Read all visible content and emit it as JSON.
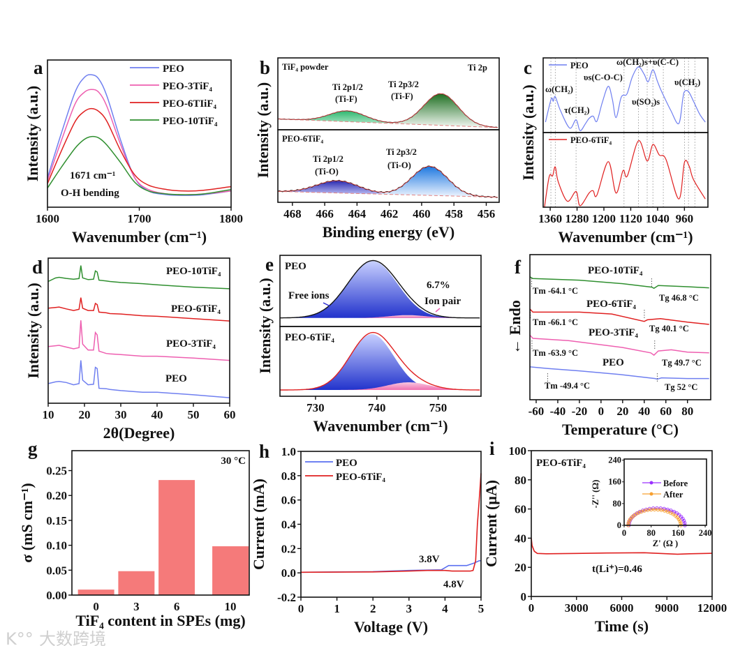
{
  "watermark": "大数跨境",
  "colors": {
    "peo": "#6f7ff0",
    "peo3": "#ee5fb0",
    "peo6": "#e02020",
    "peo10": "#2f8f2f",
    "bar": "#f57a7a",
    "before": "#9b30ff",
    "after": "#f7a030"
  },
  "chart_data": [
    {
      "id": "a",
      "panel_label": "a",
      "type": "line",
      "xlabel": "Wavenumber (cm⁻¹)",
      "ylabel": "Intensity (a.u.)",
      "xlim": [
        1600,
        1800
      ],
      "ylim": [
        0,
        100
      ],
      "xticks": [
        "1600",
        "1700",
        "1800"
      ],
      "x": [
        1600,
        1615,
        1630,
        1640,
        1648,
        1656,
        1665,
        1680,
        1695,
        1710,
        1730,
        1750,
        1770,
        1800
      ],
      "series": [
        {
          "name": "PEO",
          "color": "#6f7ff0",
          "y": [
            20,
            50,
            78,
            88,
            90,
            87,
            75,
            45,
            20,
            11,
            8.5,
            8,
            8.5,
            11
          ]
        },
        {
          "name": "PEO-3TiF₄",
          "color": "#ee5fb0",
          "y": [
            18,
            45,
            70,
            78,
            80,
            78,
            68,
            42,
            20,
            12,
            9,
            8.5,
            9,
            11
          ]
        },
        {
          "name": "PEO-6TIiF₄",
          "color": "#e02020",
          "y": [
            16,
            38,
            58,
            65,
            67,
            65,
            58,
            38,
            22,
            15,
            12,
            11,
            11.5,
            14
          ]
        },
        {
          "name": "PEO-10TiF₄",
          "color": "#2f8f2f",
          "y": [
            13,
            27,
            40,
            46,
            48,
            47,
            42,
            30,
            17,
            11,
            9,
            8.5,
            9,
            12
          ]
        }
      ],
      "annotations": [
        "1671 cm⁻¹",
        "O-H bending"
      ]
    },
    {
      "id": "b",
      "panel_label": "b",
      "type": "xps",
      "xlabel": "Binding energy (eV)",
      "ylabel": "Intensity (a.u.)",
      "xlim": [
        468.9,
        455.2
      ],
      "ylim": [
        0,
        100
      ],
      "xticks": [
        "468",
        "466",
        "464",
        "462",
        "460",
        "458",
        "456"
      ],
      "subplots": [
        {
          "label": "TiF₄ powder",
          "baseline": [
            15,
            3
          ],
          "components": [
            {
              "name": "Ti 2p1/2 (Ti-F)",
              "center": 464.6,
              "height": 15,
              "fwhm": 2.6,
              "color_light": "#c8f0d8",
              "color_dark": "#2fb870"
            },
            {
              "name": "Ti 2p3/2 (Ti-F)",
              "center": 458.8,
              "height": 44,
              "fwhm": 2.5,
              "color_light": "#f2f8f2",
              "color_dark": "#1f6f22"
            }
          ],
          "annotations": [
            "Ti 2p",
            "Ti 2p1/2",
            "(Ti-F)",
            "Ti 2p3/2",
            "(Ti-F)"
          ]
        },
        {
          "label": "PEO-6TiF₄",
          "baseline": [
            15,
            7
          ],
          "components": [
            {
              "name": "Ti 2p1/2 (Ti-O)",
              "center": 465.2,
              "height": 17,
              "fwhm": 3.0,
              "color_light": "#d8d8ff",
              "color_dark": "#2a2ab0"
            },
            {
              "name": "Ti 2p3/2 (Ti-O)",
              "center": 459.5,
              "height": 40,
              "fwhm": 2.6,
              "color_light": "#f0f6ff",
              "color_dark": "#1e78e0"
            }
          ],
          "annotations": [
            "Ti 2p1/2",
            "(Ti-O)",
            "Ti 2p3/2",
            "(Ti-O)"
          ]
        }
      ]
    },
    {
      "id": "c",
      "panel_label": "c",
      "type": "line",
      "xlabel": "Wavenumber (cm⁻¹)",
      "ylabel": "Intensity (a.u.)",
      "xlim": [
        1381,
        890
      ],
      "ylim": [
        0,
        100
      ],
      "xticks": [
        "1360",
        "1280",
        "1200",
        "1120",
        "1040",
        "960"
      ],
      "reference_lines": [
        1358,
        1345,
        1283,
        1140,
        1097,
        1071,
        1054,
        1023,
        960,
        948,
        929
      ],
      "subplots": [
        {
          "series": {
            "name": "PEO",
            "color": "#6f7ff0",
            "x": [
              1374,
              1357,
              1351,
              1345,
              1330,
              1302,
              1283,
              1271,
              1255,
              1244,
              1232,
              1221,
              1205,
              1187,
              1175,
              1164,
              1150,
              1143,
              1131,
              1115,
              1097,
              1080,
              1068,
              1054,
              1040,
              1028,
              1001,
              977,
              965,
              960,
              948,
              933,
              915,
              898
            ],
            "y": [
              14,
              45,
              42,
              48,
              30,
              6,
              17,
              2.5,
              12,
              19,
              22,
              15,
              40,
              62,
              45,
              20,
              45,
              50,
              52,
              75,
              88,
              78,
              68,
              84,
              68,
              55,
              30,
              12,
              45,
              55,
              55,
              42,
              25,
              14
            ]
          },
          "annotations": [
            "ω(CH₂)",
            "τ(CH₂)",
            "υs(C-O-C)",
            "ω(CH₂)s+υ(C-C)",
            "υ(SO₂)s",
            "υ(CH₂)"
          ]
        },
        {
          "series": {
            "name": "PEO-6TiF₄",
            "color": "#e02020",
            "x": [
              1377,
              1363,
              1353,
              1345,
              1336,
              1309,
              1283,
              1271,
              1244,
              1232,
              1221,
              1187,
              1164,
              1143,
              1130,
              1097,
              1071,
              1054,
              1035,
              1015,
              977,
              960,
              946,
              933,
              898
            ],
            "y": [
              0,
              41,
              42,
              54,
              34,
              8,
              21,
              2,
              19,
              22,
              16,
              61,
              19,
              49,
              42,
              89,
              62,
              84,
              70,
              64,
              11,
              60,
              55,
              37,
              11
            ]
          },
          "annotations": []
        }
      ]
    },
    {
      "id": "d",
      "panel_label": "d",
      "type": "line",
      "xlabel": "2θ(Degree)",
      "ylabel": "Intensity (a.u.)",
      "xlim": [
        10,
        60
      ],
      "ylim": [
        0,
        100
      ],
      "xticks": [
        "10",
        "20",
        "30",
        "40",
        "50",
        "60"
      ],
      "x": [
        10,
        12,
        13,
        15,
        17,
        18.5,
        19,
        19.5,
        21,
        22.5,
        23,
        23.5,
        24,
        26,
        27,
        30,
        36,
        40,
        50,
        60
      ],
      "series": [
        {
          "name": "PEO-10TiF₄",
          "color": "#2f8f2f",
          "y": [
            83.9,
            86.3,
            86.8,
            86,
            85.5,
            85.9,
            94.9,
            86.4,
            85.2,
            85.5,
            91.2,
            90.4,
            84.8,
            84.3,
            83.9,
            83.2,
            82.4,
            81.6,
            80,
            78.9
          ]
        },
        {
          "name": "PEO-6TiF₄",
          "color": "#e02020",
          "y": [
            65.5,
            66,
            66.3,
            65,
            63.9,
            64.7,
            72.8,
            65.5,
            63.9,
            63.9,
            68.8,
            68,
            62.8,
            62.3,
            61.8,
            61.5,
            60.3,
            59.9,
            58.3,
            56.7
          ]
        },
        {
          "name": "PEO-3TiF₄",
          "color": "#ee5fb0",
          "y": [
            39.1,
            39.6,
            39.9,
            38.7,
            37.5,
            38.3,
            57.1,
            40.7,
            36.7,
            36.7,
            48.7,
            47.1,
            35.9,
            34.3,
            34,
            33.5,
            32.4,
            32.4,
            31.1,
            29.5
          ]
        },
        {
          "name": "PEO",
          "color": "#6f7ff0",
          "y": [
            13.5,
            14.7,
            15,
            14.3,
            12.7,
            13.5,
            29.5,
            15.9,
            12.7,
            13.1,
            24.7,
            23.9,
            10.3,
            10,
            9.5,
            8.7,
            7.6,
            7.6,
            5.8,
            3.8
          ]
        }
      ]
    },
    {
      "id": "e",
      "panel_label": "e",
      "type": "raman",
      "xlabel": "Wavenumber (cm⁻¹)",
      "ylabel": "Intensity (a.u.)",
      "xlim": [
        724.2,
        757
      ],
      "ylim": [
        0,
        100
      ],
      "xticks": [
        "730",
        "740",
        "750"
      ],
      "subplots": [
        {
          "label": "PEO",
          "line_color": "#111111",
          "baseline": 12,
          "components": [
            {
              "name": "Free ions",
              "center": 739.3,
              "height": 80,
              "fwhm": 9.5
            },
            {
              "name": "Ion pair",
              "center": 745,
              "height": 4,
              "fwhm": 7
            }
          ],
          "annotations": [
            "Free ions",
            "6.7%",
            "Ion pair"
          ]
        },
        {
          "label": "PEO-6TiF₄",
          "line_color": "#e02020",
          "baseline": 9,
          "components": [
            {
              "name": "Free ions",
              "center": 739.2,
              "height": 80,
              "fwhm": 8.4
            },
            {
              "name": "Ion pair",
              "center": 745.2,
              "height": 11,
              "fwhm": 8
            }
          ],
          "annotations": []
        }
      ]
    },
    {
      "id": "f",
      "panel_label": "f",
      "type": "line",
      "xlabel": "Temperature (°C)",
      "ylabel": "← Endo",
      "xlim": [
        -65.8,
        101.5
      ],
      "ylim": [
        0,
        100
      ],
      "xticks": [
        "-60",
        "-40",
        "-20",
        "0",
        "20",
        "40",
        "60",
        "80"
      ],
      "series": [
        {
          "name": "PEO-10TiF₄",
          "color": "#2f8f2f",
          "x": [
            -66,
            -63,
            -20,
            20,
            47,
            49,
            53,
            80,
            100
          ],
          "y": [
            84.8,
            83.5,
            82.4,
            80,
            77.6,
            76.8,
            78.7,
            77.9,
            77.1
          ],
          "tm": "Tm -64.1 °C",
          "tg": "Tg 46.8 °C",
          "tm_value": -64.1,
          "tg_value": 46.8
        },
        {
          "name": "PEO-6TiF₄",
          "color": "#e02020",
          "x": [
            -66,
            -63,
            -20,
            10,
            40,
            43,
            55,
            80,
            100
          ],
          "y": [
            62.7,
            60.4,
            60.4,
            59.1,
            54,
            55.1,
            55.9,
            53.5,
            51.9
          ],
          "tm": "Tm -66.1 °C",
          "tg": "Tg 40.1 °C",
          "tm_value": -66.1,
          "tg_value": 40.1
        },
        {
          "name": "PEO-3TiF₄",
          "color": "#ee5fb0",
          "x": [
            -66,
            -63,
            -30,
            20,
            46,
            49,
            53,
            65,
            80,
            100
          ],
          "y": [
            44.7,
            42.3,
            40.7,
            36,
            32.3,
            30.7,
            33.6,
            34.4,
            32.8,
            32.3
          ],
          "tm": "Tm -63.9 °C",
          "tg": "Tg 49.7 °C",
          "tm_value": -63.9,
          "tg_value": 49.7
        },
        {
          "name": "PEO",
          "color": "#6f7ff0",
          "x": [
            -66,
            -49,
            -20,
            20,
            50,
            52,
            56,
            80,
            100
          ],
          "y": [
            22.7,
            21.5,
            19.9,
            17.2,
            14.6,
            14.2,
            15.1,
            14.6,
            14.6
          ],
          "tm": "Tm -49.4 °C",
          "tg": "Tg 52 °C",
          "tm_value": -49.4,
          "tg_value": 52
        }
      ]
    },
    {
      "id": "g",
      "panel_label": "g",
      "type": "bar",
      "xlabel": "TiF₄ content in SPEs (mg)",
      "ylabel": "σ (mS cm⁻¹)",
      "categories": [
        "0",
        "3",
        "6",
        "10"
      ],
      "values": [
        0.011,
        0.048,
        0.231,
        0.098
      ],
      "xlim": [
        -1.8,
        11.4
      ],
      "ylim": [
        0,
        0.29
      ],
      "yticks": [
        "0.00",
        "0.05",
        "0.10",
        "0.15",
        "0.20",
        "0.25"
      ],
      "annotations": [
        "30 °C"
      ]
    },
    {
      "id": "h",
      "panel_label": "h",
      "type": "line",
      "xlabel": "Voltage (V)",
      "ylabel": "Current (mA)",
      "xlim": [
        0,
        5
      ],
      "ylim": [
        -0.2,
        1.0
      ],
      "xticks": [
        "0",
        "1",
        "2",
        "3",
        "4",
        "5"
      ],
      "yticks": [
        "-0.2",
        "0.0",
        "0.2",
        "0.4",
        "0.6",
        "0.8",
        "1.0"
      ],
      "series": [
        {
          "name": "PEO",
          "color": "#5a6ff0",
          "x": [
            0,
            2,
            3,
            3.9,
            4.1,
            4.3,
            4.6,
            4.8,
            4.95,
            5
          ],
          "y": [
            0.005,
            0.01,
            0.02,
            0.025,
            0.06,
            0.06,
            0.06,
            0.08,
            0.1,
            0.1
          ]
        },
        {
          "name": "PEO-6TiF₄",
          "color": "#e02020",
          "x": [
            0,
            2,
            3,
            3.5,
            4,
            4.2,
            4.7,
            4.78,
            4.85,
            4.9,
            4.95,
            5
          ],
          "y": [
            0.005,
            0.008,
            0.015,
            0.02,
            0.02,
            0.015,
            0.015,
            0.02,
            0.1,
            0.4,
            0.6,
            0.82
          ]
        }
      ],
      "annotations": [
        "3.8V",
        "4.8V"
      ]
    },
    {
      "id": "i",
      "panel_label": "i",
      "type": "line",
      "xlabel": "Time (s)",
      "ylabel": "Current (μA)",
      "xlim": [
        0,
        12000
      ],
      "ylim": [
        0,
        100
      ],
      "xticks": [
        "0",
        "3000",
        "6000",
        "9000",
        "12000"
      ],
      "yticks": [
        "0",
        "20",
        "40",
        "60",
        "80",
        "100"
      ],
      "series": [
        {
          "name": "PEO-6TiF₄",
          "color": "#e02020",
          "x": [
            0,
            50,
            200,
            400,
            1000,
            3000,
            5000,
            7500,
            9700,
            10500,
            12000
          ],
          "y": [
            40,
            35,
            31,
            29.5,
            29.3,
            29.5,
            29.8,
            30,
            29,
            29.3,
            29.6
          ]
        }
      ],
      "annotations": [
        "PEO-6TiF₄",
        "t(Li⁺)=0.46"
      ],
      "inset": {
        "type": "nyquist",
        "xlabel": "Z' (Ω )",
        "ylabel": "-Z'' (Ω)",
        "xlim": [
          0,
          244
        ],
        "ylim": [
          0,
          244
        ],
        "xticks": [
          "0",
          "80",
          "160",
          "240"
        ],
        "yticks": [
          "0",
          "80",
          "160",
          "240"
        ],
        "series": [
          {
            "name": "Before",
            "color": "#9b30ff",
            "z_start": 14,
            "z_end": 180,
            "peak": 63
          },
          {
            "name": "After",
            "color": "#f7a030",
            "z_start": 12,
            "z_end": 168,
            "peak": 58
          }
        ]
      }
    }
  ]
}
